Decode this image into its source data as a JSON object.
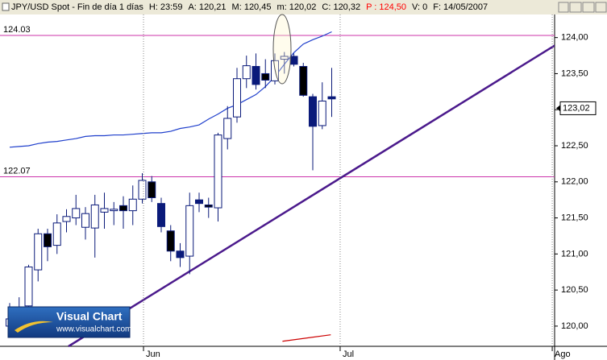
{
  "chart_data": {
    "type": "candlestick",
    "header": [
      "JPY/USD Spot - Fin de día 1 días",
      "H: 23:59",
      "A: 120,21",
      "M: 120,45",
      "m: 120,02",
      "C: 120,32",
      "P : 124,50",
      "V: 0",
      "F: 14/05/2007"
    ],
    "header_highlight_color": "#ff0000",
    "x": [
      0,
      1,
      2,
      3,
      4,
      5,
      6,
      7,
      8,
      9,
      10,
      11,
      12,
      13,
      14,
      15,
      16,
      17,
      18,
      19,
      20,
      21,
      22,
      23,
      24,
      25,
      26,
      27,
      28,
      29,
      30,
      31,
      32,
      33,
      34
    ],
    "open": [
      120.0,
      120.22,
      120.28,
      120.78,
      121.28,
      121.12,
      121.45,
      121.5,
      121.37,
      121.36,
      121.58,
      121.62,
      121.67,
      121.6,
      121.76,
      122.0,
      121.7,
      121.32,
      121.04,
      120.97,
      121.75,
      121.68,
      121.64,
      122.6,
      122.9,
      123.43,
      123.6,
      123.5,
      123.4,
      123.7,
      123.74,
      123.6,
      123.18,
      122.78,
      123.18
    ],
    "high": [
      120.32,
      120.4,
      120.85,
      121.35,
      121.35,
      121.55,
      121.62,
      121.82,
      121.65,
      121.82,
      121.85,
      121.72,
      121.8,
      121.95,
      122.12,
      122.08,
      121.78,
      121.4,
      121.15,
      121.85,
      121.85,
      121.78,
      122.68,
      123.05,
      123.58,
      123.75,
      123.78,
      123.7,
      123.78,
      123.8,
      123.78,
      123.65,
      123.22,
      123.38,
      123.58
    ],
    "low": [
      119.95,
      119.95,
      120.2,
      120.62,
      120.9,
      121.0,
      121.3,
      121.4,
      121.2,
      120.95,
      121.35,
      121.4,
      121.35,
      121.4,
      121.7,
      121.72,
      121.3,
      120.9,
      120.82,
      120.72,
      121.58,
      121.5,
      121.45,
      122.45,
      122.82,
      123.3,
      123.28,
      123.3,
      123.35,
      123.5,
      123.6,
      123.18,
      122.16,
      122.73,
      122.9
    ],
    "close": [
      120.1,
      120.05,
      120.82,
      121.28,
      121.1,
      121.43,
      121.52,
      121.63,
      121.56,
      121.68,
      121.63,
      121.6,
      121.6,
      121.76,
      122.02,
      121.78,
      121.38,
      121.04,
      120.95,
      121.67,
      121.7,
      121.65,
      122.65,
      122.88,
      123.43,
      123.61,
      123.35,
      123.41,
      123.68,
      123.74,
      123.63,
      123.2,
      122.77,
      123.12,
      123.15
    ],
    "body_colors": [
      "#ffffff",
      "#0a1a7a",
      "#ffffff",
      "#ffffff",
      "#000000",
      "#ffffff",
      "#ffffff",
      "#ffffff",
      "#ffffff",
      "#ffffff",
      "#ffffff",
      "#ffffff",
      "#000000",
      "#ffffff",
      "#ffffff",
      "#000000",
      "#0a1a7a",
      "#000000",
      "#0a1a7a",
      "#ffffff",
      "#0a1a7a",
      "#000000",
      "#ffffff",
      "#ffffff",
      "#ffffff",
      "#ffffff",
      "#0a1a7a",
      "#000000",
      "#ffffff",
      "#ffffff",
      "#0a1a7a",
      "#000000",
      "#0a1a7a",
      "#ffffff",
      "#0a1a7a"
    ],
    "wick_color": "#0a1a7a",
    "moving_average": {
      "color": "#1f3fcc",
      "values": [
        122.48,
        122.49,
        122.5,
        122.53,
        122.55,
        122.56,
        122.58,
        122.6,
        122.63,
        122.64,
        122.64,
        122.65,
        122.65,
        122.66,
        122.67,
        122.68,
        122.68,
        122.7,
        122.74,
        122.76,
        122.79,
        122.87,
        122.94,
        123.02,
        123.07,
        123.14,
        123.21,
        123.32,
        123.46,
        123.63,
        123.79,
        123.91,
        123.97,
        124.02,
        124.08
      ]
    },
    "levels": [
      124.03,
      122.07
    ],
    "level_color": "#cc33aa",
    "trendline": {
      "color": "#4b1a8c",
      "x": [
        6.21,
        57.53
      ],
      "values": [
        119.72,
        123.89
      ]
    },
    "indicator_line": {
      "color": "#cc0000",
      "x": [
        28.8,
        33.9
      ],
      "values": [
        119.79,
        119.88
      ]
    },
    "last_price": {
      "value": 123.02,
      "label": "123,02"
    },
    "xlim": [
      -1.02,
      57.53
    ],
    "ylim": [
      119.72,
      124.32
    ],
    "xticks": [
      {
        "value": 14.13,
        "label": "Jun"
      },
      {
        "value": 34.89,
        "label": "Jul"
      },
      {
        "value": 57.28,
        "label": "Ago"
      }
    ],
    "yticks": [
      {
        "value": 120,
        "label": "120,00"
      },
      {
        "value": 120.5,
        "label": "120,50"
      },
      {
        "value": 121,
        "label": "121,00"
      },
      {
        "value": 121.5,
        "label": "121,50"
      },
      {
        "value": 122,
        "label": "122,00"
      },
      {
        "value": 122.5,
        "label": "122,50"
      },
      {
        "value": 123,
        "label": "123,00"
      },
      {
        "value": 123.5,
        "label": "123,50"
      },
      {
        "value": 124,
        "label": "124,00"
      }
    ],
    "logo": {
      "title": "Visual Chart",
      "url": "www.visualchart.com"
    }
  }
}
